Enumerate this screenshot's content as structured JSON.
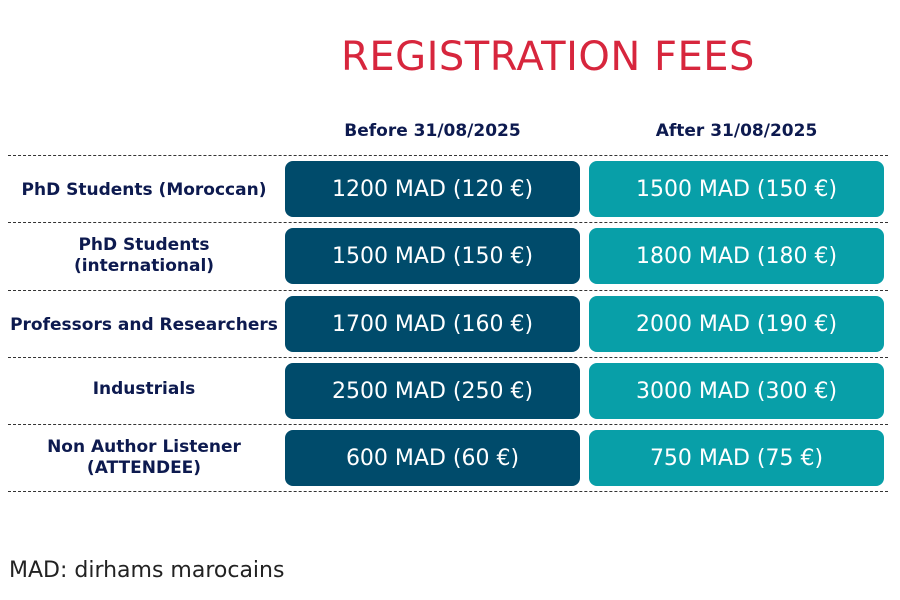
{
  "title": "REGISTRATION FEES",
  "columns": {
    "before": "Before 31/08/2025",
    "after": "After 31/08/2025"
  },
  "rows": [
    {
      "label": "PhD Students (Moroccan)",
      "before": "1200 MAD (120 €)",
      "after": "1500 MAD (150 €)"
    },
    {
      "label": "PhD Students (international)",
      "before": "1500 MAD (150 €)",
      "after": "1800 MAD (180 €)"
    },
    {
      "label": "Professors and Researchers",
      "before": "1700 MAD (160 €)",
      "after": "2000 MAD (190 €)"
    },
    {
      "label": "Industrials",
      "before": "2500 MAD (250 €)",
      "after": "3000 MAD (300 €)"
    },
    {
      "label": "Non Author Listener (ATTENDEE)",
      "before": "600 MAD (60 €)",
      "after": "750 MAD (75 €)"
    }
  ],
  "footnote": "MAD: dirhams marocains",
  "colors": {
    "title": "#d7263d",
    "before_cell": "#004b6b",
    "after_cell": "#089fa8",
    "row_label": "#0d1a4f"
  }
}
